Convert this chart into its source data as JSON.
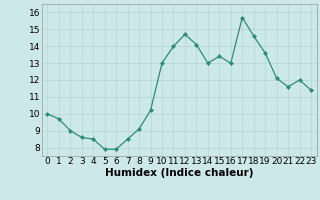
{
  "x": [
    0,
    1,
    2,
    3,
    4,
    5,
    6,
    7,
    8,
    9,
    10,
    11,
    12,
    13,
    14,
    15,
    16,
    17,
    18,
    19,
    20,
    21,
    22,
    23
  ],
  "y": [
    10.0,
    9.7,
    9.0,
    8.6,
    8.5,
    7.9,
    7.9,
    8.5,
    9.1,
    10.2,
    13.0,
    14.0,
    14.7,
    14.1,
    13.0,
    13.4,
    13.0,
    15.7,
    14.6,
    13.6,
    12.1,
    11.6,
    12.0,
    11.4
  ],
  "xlim": [
    -0.5,
    23.5
  ],
  "ylim": [
    7.5,
    16.5
  ],
  "yticks": [
    8,
    9,
    10,
    11,
    12,
    13,
    14,
    15,
    16
  ],
  "xticks": [
    0,
    1,
    2,
    3,
    4,
    5,
    6,
    7,
    8,
    9,
    10,
    11,
    12,
    13,
    14,
    15,
    16,
    17,
    18,
    19,
    20,
    21,
    22,
    23
  ],
  "xlabel": "Humidex (Indice chaleur)",
  "line_color": "#2e8b7a",
  "marker_color": "#2e8b7a",
  "bg_color": "#cce8e8",
  "grid_color": "#b8d8d8",
  "tick_fontsize": 6.5,
  "label_fontsize": 7.5
}
